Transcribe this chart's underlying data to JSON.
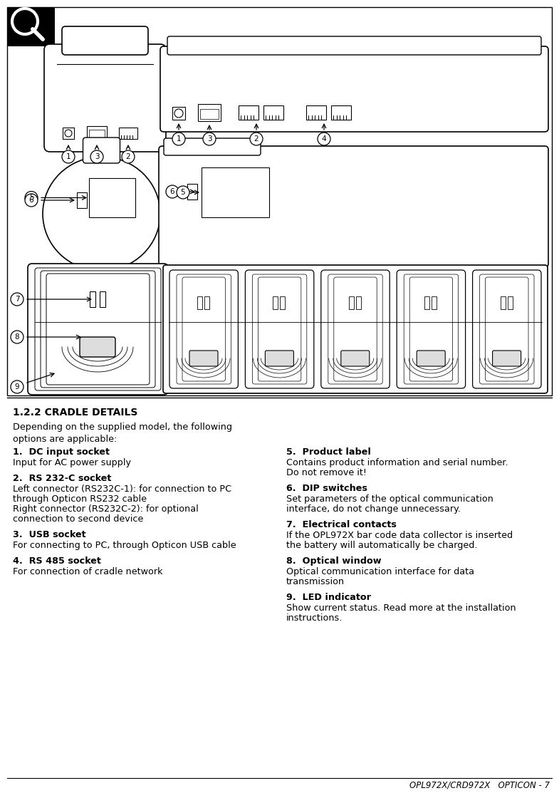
{
  "title": "1.2.2 CRADLE DETAILS",
  "intro": "Depending on the supplied model, the following\noptions are applicable:",
  "items_left": [
    {
      "num": "1.  ",
      "bold": "DC input socket",
      "text": "Input for AC power supply"
    },
    {
      "num": "2.  ",
      "bold": "RS 232-C socket",
      "text": "Left connector (RS232C-1): for connection to PC\nthrough Opticon RS232 cable\nRight connector (RS232C-2): for optional\nconnection to second device"
    },
    {
      "num": "3.  ",
      "bold": "USB socket",
      "text": "For connecting to PC, through Opticon USB cable"
    },
    {
      "num": "4.  ",
      "bold": "RS 485 socket",
      "text": "For connection of cradle network"
    }
  ],
  "items_right": [
    {
      "num": "5.  ",
      "bold": "Product label",
      "text": "Contains product information and serial number.\nDo not remove it!"
    },
    {
      "num": "6.  ",
      "bold": "DIP switches",
      "text": "Set parameters of the optical communication\ninterface, do not change unnecessary."
    },
    {
      "num": "7.  ",
      "bold": "Electrical contacts",
      "text": "If the OPL972X bar code data collector is inserted\nthe battery will automatically be charged."
    },
    {
      "num": "8.  ",
      "bold": "Optical window",
      "text": "Optical communication interface for data\ntransmission"
    },
    {
      "num": "9.  ",
      "bold": "LED indicator",
      "text": "Show current status. Read more at the installation\ninstructions."
    }
  ],
  "footer": "OPL972X/CRD972X   OPTICON - 7",
  "bg_color": "#ffffff"
}
